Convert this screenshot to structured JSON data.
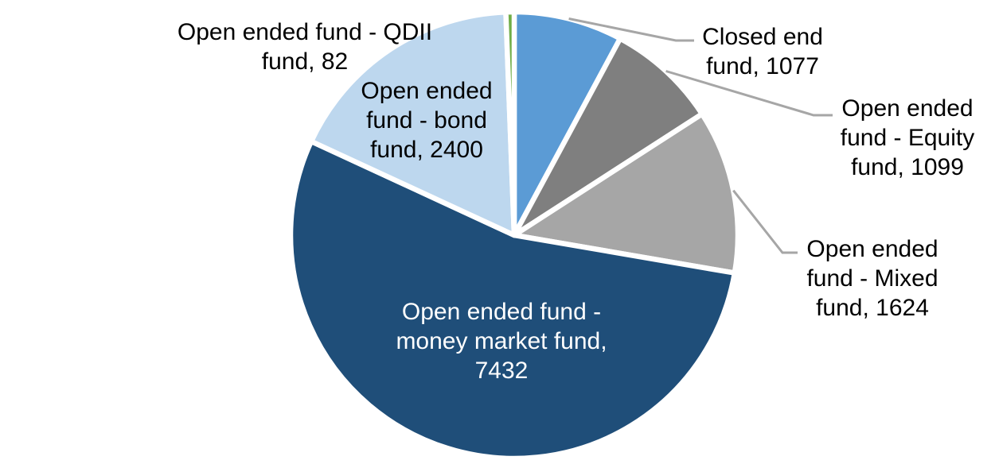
{
  "chart_data": {
    "type": "pie",
    "title": "",
    "legend_position": "none",
    "direction": "clockwise",
    "start_angle_deg": 0,
    "total": 13714,
    "background_color": "#FFFFFF",
    "slice_border_color": "#FFFFFF",
    "leader_line_color": "#A6A6A6",
    "default_label_color": "#000000",
    "slices": [
      {
        "name": "Closed end fund",
        "value": 1077,
        "color": "#5B9BD5",
        "label": "Closed end fund, 1077",
        "label_placement": "outside",
        "has_leader_line": true
      },
      {
        "name": "Open ended fund - Equity fund",
        "value": 1099,
        "color": "#7F7F7F",
        "label": "Open ended fund - Equity fund, 1099",
        "label_placement": "outside",
        "has_leader_line": true
      },
      {
        "name": "Open ended fund - Mixed fund",
        "value": 1624,
        "color": "#A6A6A6",
        "label": "Open ended fund - Mixed fund, 1624",
        "label_placement": "outside",
        "has_leader_line": true
      },
      {
        "name": "Open ended fund - money market fund",
        "value": 7432,
        "color": "#1F4E79",
        "label": "Open ended fund - money market fund, 7432",
        "label_placement": "inside",
        "has_leader_line": false,
        "label_color": "#FFFFFF"
      },
      {
        "name": "Open ended fund - bond fund",
        "value": 2400,
        "color": "#BDD7EE",
        "label": "Open ended fund - bond fund, 2400",
        "label_placement": "inside",
        "has_leader_line": false
      },
      {
        "name": "Open ended fund - QDII fund",
        "value": 82,
        "color": "#70AD47",
        "label": "Open ended fund - QDII fund, 82",
        "label_placement": "outside",
        "has_leader_line": false
      }
    ]
  }
}
